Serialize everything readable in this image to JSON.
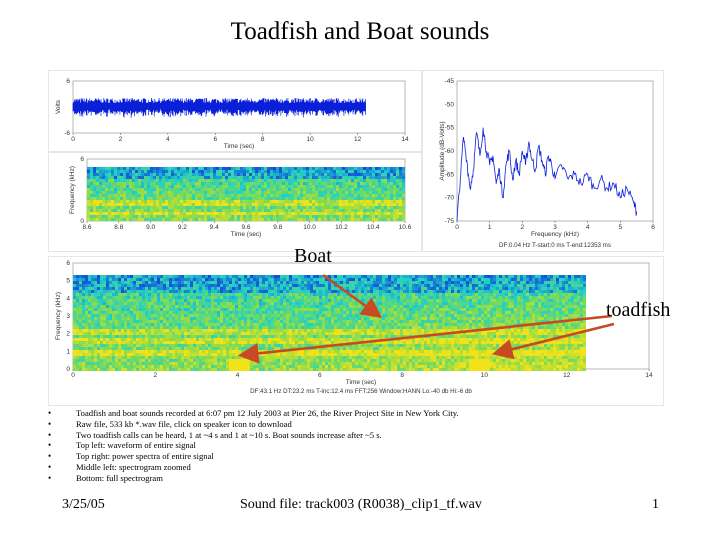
{
  "title": "Toadfish and Boat sounds",
  "annotations": {
    "boat": "Boat",
    "toadfish": "toadfish"
  },
  "bullets": [
    "Toadfish and boat sounds recorded at 6:07 pm 12 July 2003 at Pier 26, the River Project Site in New York City.",
    "Raw file,  533 kb *.wav file, click on speaker icon to download",
    "Two toadfish calls can be heard, 1 at ~4 s and 1 at ~10 s. Boat sounds increase after ~5 s.",
    "Top left: waveform of entire signal",
    "Top right: power spectra of entire signal",
    "Middle left: spectrogram zoomed",
    "Bottom: full spectrogram"
  ],
  "footer": {
    "date": "3/25/05",
    "file": "Sound file: track003 (R0038)_clip1_tf.wav",
    "page": "1"
  },
  "colors": {
    "trace": "#0a1fd8",
    "arrow": "#c84a22",
    "spec_low": "#0a1a8c",
    "spec_mid": "#1fd0c8",
    "spec_high": "#f2e21a"
  },
  "chart_data": [
    {
      "type": "line",
      "panel": "waveform",
      "xlabel": "Time (sec)",
      "ylabel": "Volts",
      "x_ticks": [
        "0",
        "2",
        "4",
        "6",
        "8",
        "10",
        "12",
        "14"
      ],
      "y_ticks": [
        "6",
        "-6"
      ],
      "xlim": [
        0,
        14
      ],
      "ylim": [
        -6,
        6
      ],
      "signal_duration_sec": 12.35
    },
    {
      "type": "line",
      "panel": "power-spectrum",
      "xlabel": "Frequency (kHz)",
      "ylabel": "Amplitude (dB-Volts)",
      "x_ticks": [
        "0",
        "1",
        "2",
        "3",
        "4",
        "5",
        "6"
      ],
      "y_ticks": [
        "-45",
        "-50",
        "-55",
        "-60",
        "-65",
        "-70",
        "-75"
      ],
      "xlim": [
        0,
        6
      ],
      "ylim": [
        -75,
        -45
      ],
      "x": [
        0.0,
        0.1,
        0.2,
        0.3,
        0.4,
        0.5,
        0.6,
        0.7,
        0.8,
        0.9,
        1.0,
        1.1,
        1.2,
        1.3,
        1.4,
        1.5,
        1.6,
        1.7,
        1.8,
        1.9,
        2.0,
        2.1,
        2.2,
        2.3,
        2.4,
        2.5,
        2.6,
        2.7,
        2.8,
        2.9,
        3.0,
        3.2,
        3.4,
        3.6,
        3.8,
        4.0,
        4.2,
        4.4,
        4.6,
        4.8,
        5.0,
        5.2,
        5.4,
        5.5
      ],
      "y": [
        -75,
        -66,
        -57,
        -62,
        -68,
        -64,
        -56,
        -61,
        -55,
        -60,
        -63,
        -61,
        -67,
        -64,
        -70,
        -63,
        -60,
        -66,
        -62,
        -65,
        -60,
        -63,
        -58,
        -62,
        -64,
        -59,
        -62,
        -65,
        -61,
        -63,
        -66,
        -63,
        -66,
        -65,
        -67,
        -65,
        -68,
        -66,
        -68,
        -67,
        -70,
        -68,
        -71,
        -73
      ],
      "caption": "DF:0.04 Hz   T-start:0 ms   T-end:12353 ms"
    },
    {
      "type": "heatmap",
      "panel": "spectrogram-zoomed",
      "xlabel": "Time (sec)",
      "ylabel": "Frequency (kHz)",
      "x_ticks": [
        "8.6",
        "8.8",
        "9.0",
        "9.2",
        "9.4",
        "9.6",
        "9.8",
        "10.0",
        "10.2",
        "10.4",
        "10.6"
      ],
      "y_ticks": [
        "6",
        "0"
      ],
      "xlim": [
        8.6,
        10.6
      ],
      "ylim": [
        0,
        6
      ]
    },
    {
      "type": "heatmap",
      "panel": "spectrogram-full",
      "xlabel": "Time (sec)",
      "ylabel": "Frequency (kHz)",
      "x_ticks": [
        "0",
        "2",
        "4",
        "6",
        "8",
        "10",
        "12",
        "14"
      ],
      "y_ticks": [
        "6",
        "5",
        "4",
        "3",
        "2",
        "1",
        "0"
      ],
      "xlim": [
        0,
        14
      ],
      "ylim": [
        0,
        6
      ],
      "caption": "DF:43.1 Hz   DT:23.2 ms   T-inc:12.4 ms   FFT:256   Window:HANN   Lo:-40 db   Hi:-6 db"
    }
  ]
}
